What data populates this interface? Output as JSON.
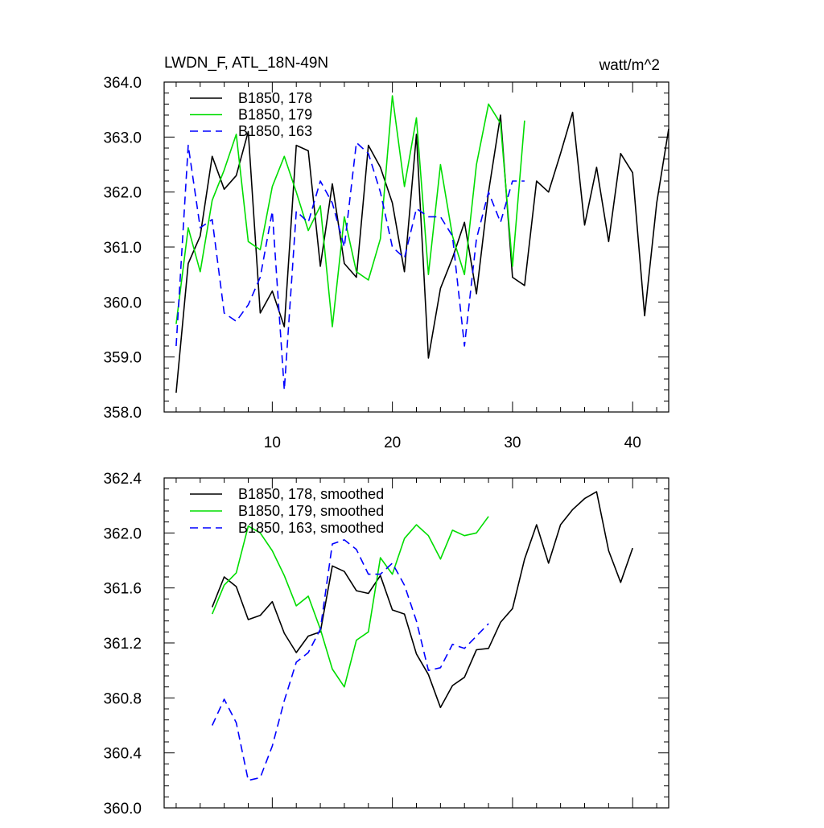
{
  "header": {
    "left_title": "LWDN_F, ATL_18N-49N",
    "right_title": "watt/m^2"
  },
  "chart_data": [
    {
      "type": "line",
      "xlim": [
        1,
        43
      ],
      "ylim": [
        358.0,
        364.0
      ],
      "x_ticks": [
        10,
        20,
        30,
        40
      ],
      "x_tick_labels": [
        "10",
        "20",
        "30",
        "40"
      ],
      "y_ticks": [
        358.0,
        359.0,
        360.0,
        361.0,
        362.0,
        363.0,
        364.0
      ],
      "y_tick_labels": [
        "358.0",
        "359.0",
        "360.0",
        "361.0",
        "362.0",
        "363.0",
        "364.0"
      ],
      "grid": false,
      "legend_position": "top-left",
      "series": [
        {
          "name": "B1850, 178",
          "color": "#000000",
          "dash": "solid",
          "x": [
            2,
            3,
            4,
            5,
            6,
            7,
            8,
            9,
            10,
            11,
            12,
            13,
            14,
            15,
            16,
            17,
            18,
            19,
            20,
            21,
            22,
            23,
            24,
            25,
            26,
            27,
            28,
            29,
            30,
            31,
            32,
            33,
            34,
            35,
            36,
            37,
            38,
            39,
            40,
            41,
            42,
            43
          ],
          "values": [
            358.35,
            360.7,
            361.2,
            362.65,
            362.05,
            362.3,
            363.1,
            359.8,
            360.2,
            359.55,
            362.85,
            362.75,
            360.65,
            362.15,
            360.7,
            360.45,
            362.85,
            362.45,
            361.8,
            360.55,
            363.05,
            358.98,
            360.25,
            360.8,
            361.45,
            360.15,
            362.0,
            363.4,
            360.45,
            360.3,
            362.2,
            362.0,
            362.7,
            363.45,
            361.4,
            362.45,
            361.1,
            362.7,
            362.35,
            359.75,
            361.8,
            363.15
          ]
        },
        {
          "name": "B1850, 179",
          "color": "#00dd00",
          "dash": "solid",
          "x": [
            2,
            3,
            4,
            5,
            6,
            7,
            8,
            9,
            10,
            11,
            12,
            13,
            14,
            15,
            16,
            17,
            18,
            19,
            20,
            21,
            22,
            23,
            24,
            25,
            26,
            27,
            28,
            29,
            30,
            31
          ],
          "values": [
            359.6,
            361.35,
            360.55,
            361.85,
            362.4,
            363.05,
            361.1,
            360.95,
            362.1,
            362.65,
            362.0,
            361.3,
            361.75,
            359.55,
            361.55,
            360.55,
            360.4,
            361.15,
            363.75,
            362.1,
            363.35,
            360.5,
            362.5,
            361.2,
            360.5,
            362.5,
            363.6,
            363.25,
            360.65,
            363.3
          ]
        },
        {
          "name": "B1850, 163",
          "color": "#0000ff",
          "dash": "dashed",
          "x": [
            2,
            3,
            4,
            5,
            6,
            7,
            8,
            9,
            10,
            11,
            12,
            13,
            14,
            15,
            16,
            17,
            18,
            19,
            20,
            21,
            22,
            23,
            24,
            25,
            26,
            27,
            28,
            29,
            30,
            31
          ],
          "values": [
            359.2,
            362.85,
            361.35,
            361.5,
            359.8,
            359.65,
            359.95,
            360.45,
            361.65,
            358.4,
            361.65,
            361.45,
            362.2,
            361.8,
            361.0,
            362.9,
            362.7,
            362.0,
            361.0,
            360.8,
            361.7,
            361.55,
            361.55,
            361.2,
            359.2,
            361.15,
            362.0,
            361.45,
            362.2,
            362.2
          ]
        }
      ]
    },
    {
      "type": "line",
      "xlim": [
        1,
        43
      ],
      "ylim": [
        360.0,
        362.4
      ],
      "y_ticks": [
        360.0,
        360.4,
        360.8,
        361.2,
        361.6,
        362.0,
        362.4
      ],
      "y_tick_labels": [
        "360.0",
        "360.4",
        "360.8",
        "361.2",
        "361.6",
        "362.0",
        "362.4"
      ],
      "grid": false,
      "legend_position": "top-left",
      "series": [
        {
          "name": "B1850, 178, smoothed",
          "color": "#000000",
          "dash": "solid",
          "x": [
            5,
            6,
            7,
            8,
            9,
            10,
            11,
            12,
            13,
            14,
            15,
            16,
            17,
            18,
            19,
            20,
            21,
            22,
            23,
            24,
            25,
            26,
            27,
            28,
            29,
            30,
            31,
            32,
            33,
            34,
            35,
            36,
            37,
            38,
            39,
            40
          ],
          "values": [
            361.46,
            361.68,
            361.61,
            361.37,
            361.4,
            361.5,
            361.27,
            361.13,
            361.25,
            361.28,
            361.76,
            361.72,
            361.58,
            361.56,
            361.69,
            361.44,
            361.41,
            361.12,
            360.97,
            360.73,
            360.89,
            360.95,
            361.15,
            361.16,
            361.35,
            361.45,
            361.81,
            362.06,
            361.78,
            362.06,
            362.17,
            362.25,
            362.3,
            361.87,
            361.64,
            361.89
          ]
        },
        {
          "name": "B1850, 179, smoothed",
          "color": "#00dd00",
          "dash": "solid",
          "x": [
            5,
            6,
            7,
            8,
            9,
            10,
            11,
            12,
            13,
            14,
            15,
            16,
            17,
            18,
            19,
            20,
            21,
            22,
            23,
            24,
            25,
            26,
            27,
            28
          ],
          "values": [
            361.41,
            361.62,
            361.71,
            362.05,
            362.0,
            361.87,
            361.69,
            361.47,
            361.54,
            361.3,
            361.01,
            360.88,
            361.22,
            361.28,
            361.82,
            361.7,
            361.96,
            362.06,
            361.98,
            361.81,
            362.02,
            361.98,
            362.0,
            362.12
          ]
        },
        {
          "name": "B1850, 163, smoothed",
          "color": "#0000ff",
          "dash": "dashed",
          "x": [
            5,
            6,
            7,
            8,
            9,
            10,
            11,
            12,
            13,
            14,
            15,
            16,
            17,
            18,
            19,
            20,
            21,
            22,
            23,
            24,
            25,
            26,
            27,
            28
          ],
          "values": [
            360.6,
            360.79,
            360.62,
            360.2,
            360.22,
            360.45,
            360.78,
            361.06,
            361.13,
            361.3,
            361.92,
            361.95,
            361.88,
            361.7,
            361.7,
            361.78,
            361.62,
            361.36,
            361.0,
            361.02,
            361.19,
            361.16,
            361.25,
            361.34
          ]
        }
      ]
    }
  ]
}
